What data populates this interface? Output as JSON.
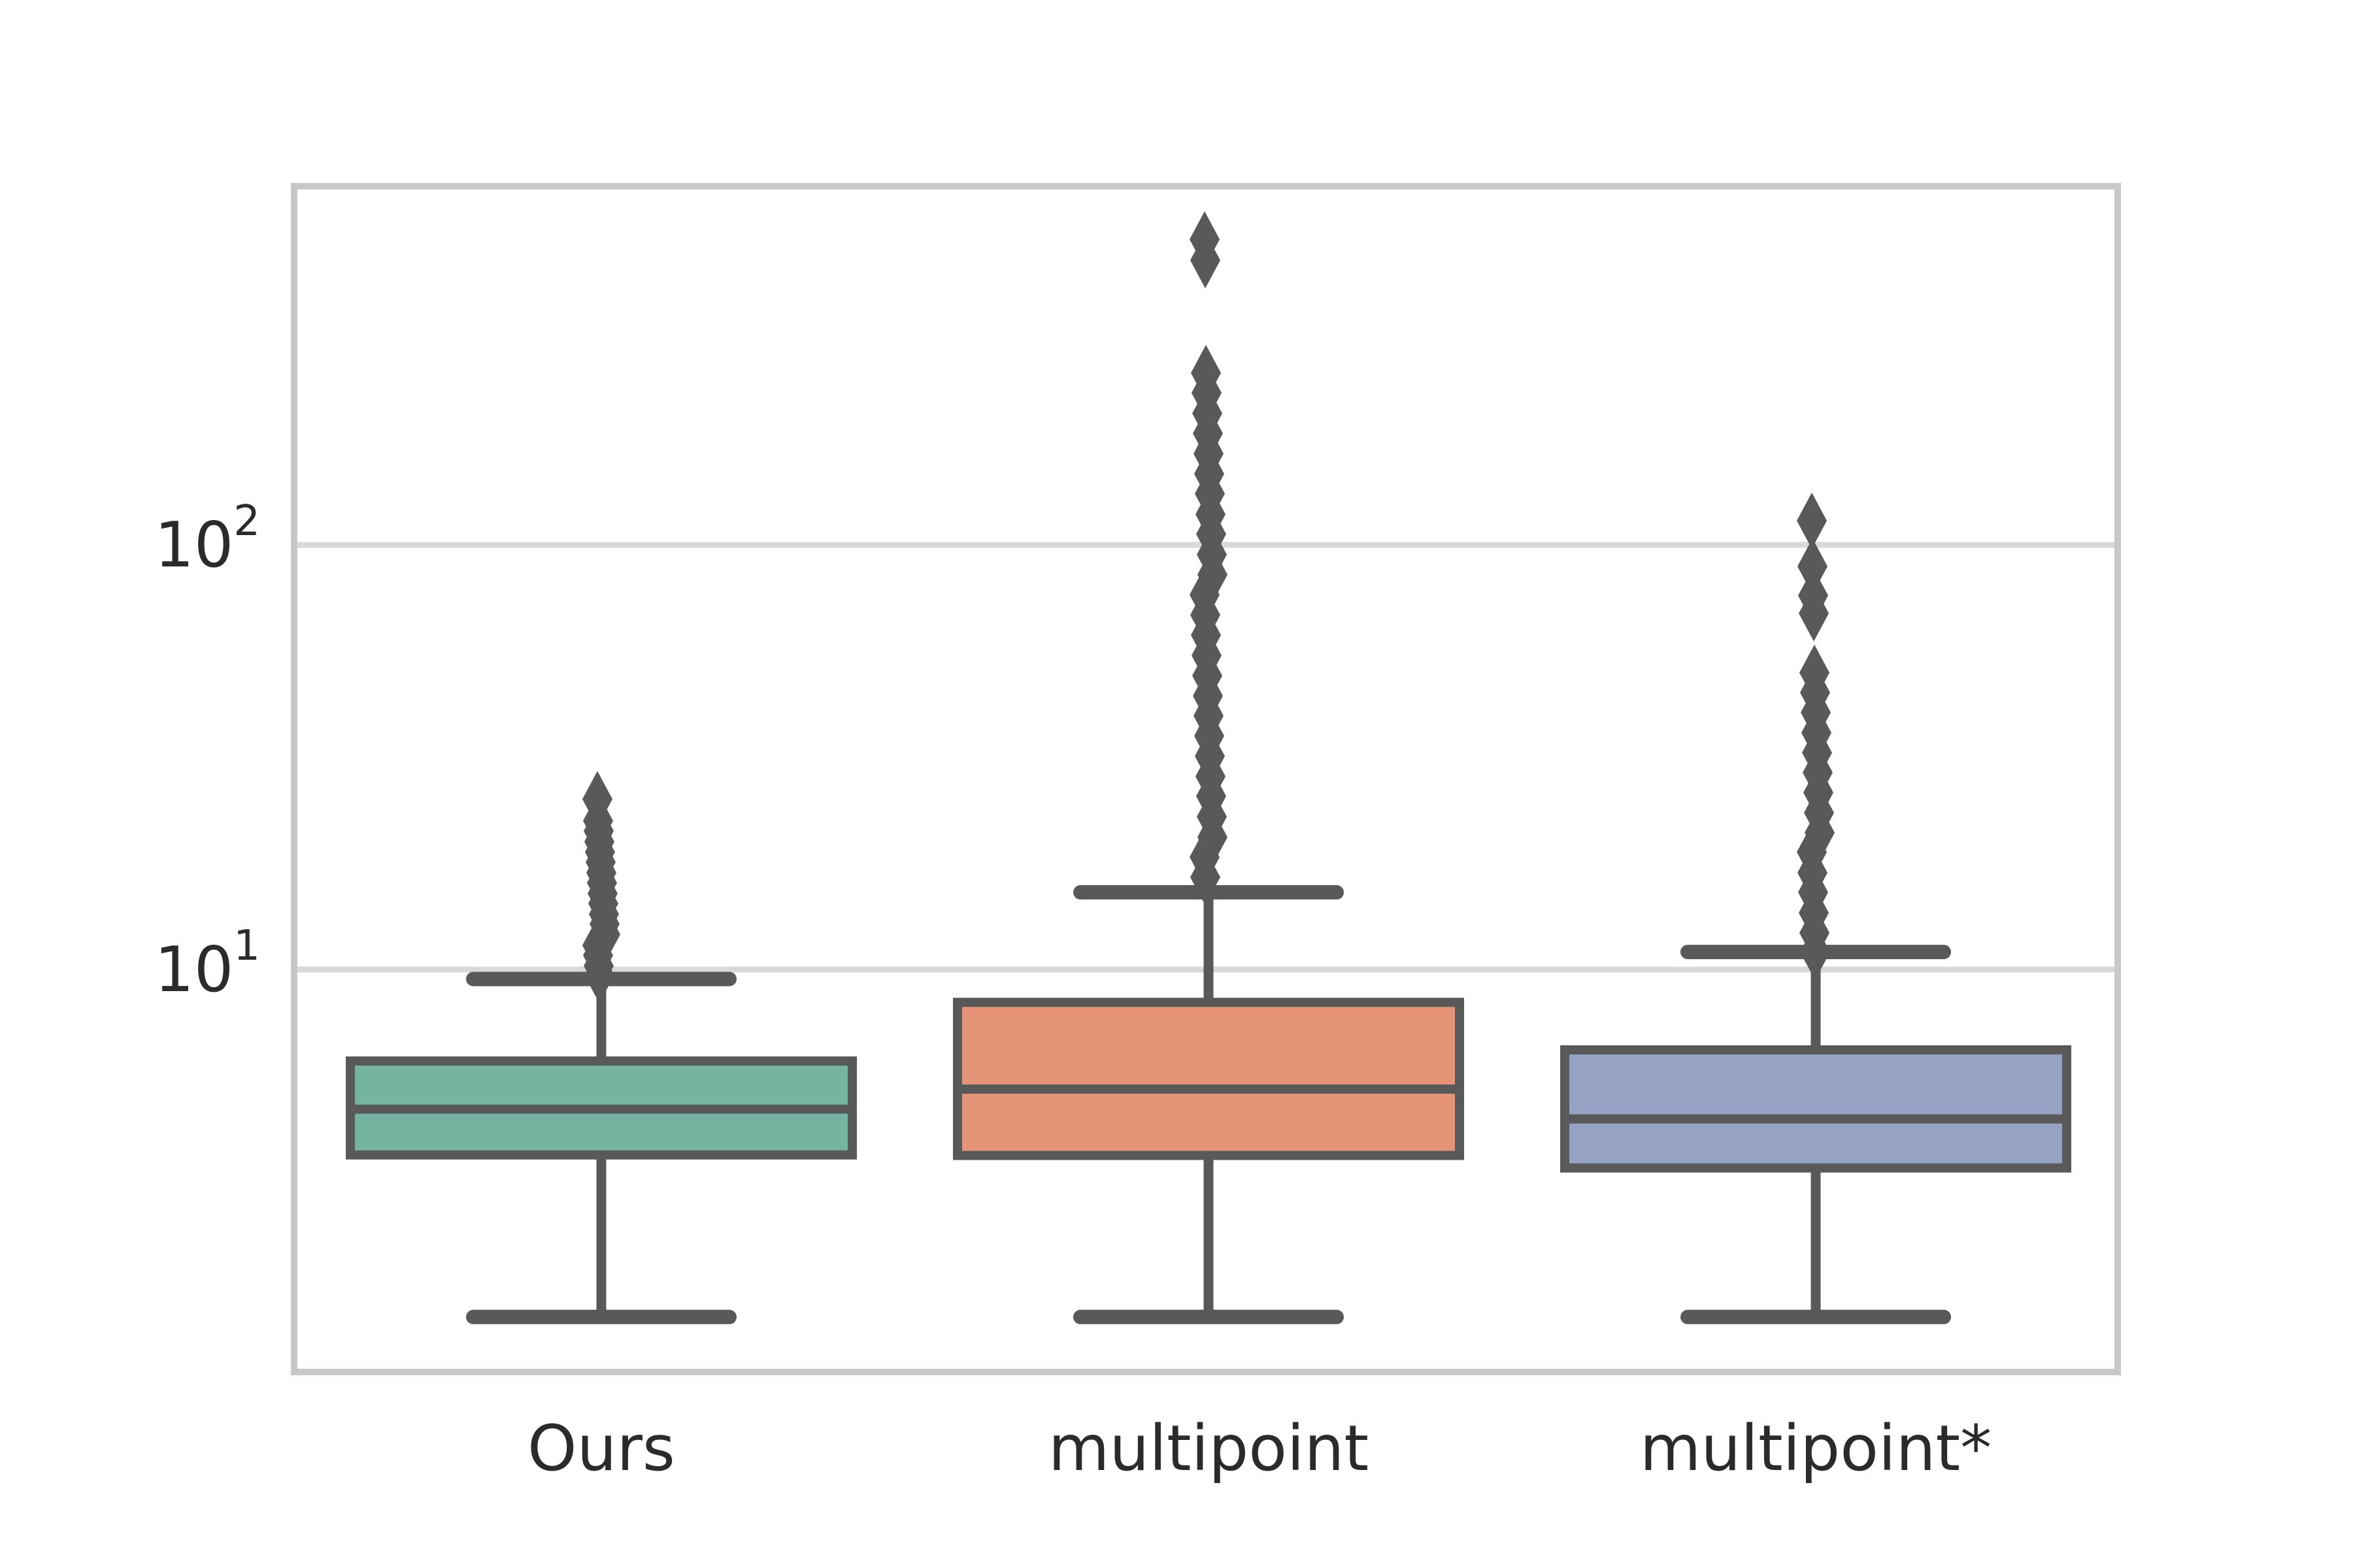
{
  "chart_data": {
    "type": "box",
    "title": "",
    "xlabel": "",
    "ylabel": "",
    "yscale": "log",
    "ylim": [
      1.13,
      700
    ],
    "grid": "horizontal",
    "categories": [
      "Ours",
      "multipoint",
      "multipoint*"
    ],
    "y_ticks": [
      {
        "base": "10",
        "exponent": "2",
        "value": 100
      },
      {
        "base": "10",
        "exponent": "1",
        "value": 10
      }
    ],
    "series": [
      {
        "name": "Ours",
        "box_color": "#75b4a0",
        "whisker_low": 1.52,
        "q1": 3.66,
        "median": 4.69,
        "q3": 6.09,
        "whisker_high": 9.5,
        "outliers": [
          25.2,
          22.4,
          21.2,
          20.0,
          18.9,
          17.9,
          16.9,
          16.0,
          15.1,
          14.3,
          13.5,
          12.8,
          12.1,
          11.4,
          10.8,
          10.2,
          9.7
        ]
      },
      {
        "name": "multipoint",
        "box_color": "#e69478",
        "whisker_low": 1.52,
        "q1": 3.65,
        "median": 5.23,
        "q3": 8.37,
        "whisker_high": 15.2,
        "outliers": [
          524,
          468,
          254,
          228,
          204,
          183,
          164,
          147,
          132,
          118,
          106,
          94.9,
          85.1,
          76.3,
          68.4,
          61.3,
          54.9,
          49.2,
          44.1,
          39.6,
          35.5,
          31.8,
          28.5,
          25.6,
          22.9,
          20.5,
          18.4,
          16.5
        ]
      },
      {
        "name": "multipoint*",
        "box_color": "#95a2c3",
        "whisker_low": 1.52,
        "q1": 3.41,
        "median": 4.45,
        "q3": 6.47,
        "whisker_high": 11.0,
        "outliers": [
          114,
          89,
          76,
          69,
          50,
          44.9,
          40.3,
          36.1,
          32.4,
          29.1,
          26.1,
          23.4,
          21.0,
          18.9,
          16.9,
          15.2,
          13.6,
          12.2,
          11.0
        ]
      }
    ],
    "colors": {
      "line_and_marker": "#595959",
      "grid_line": "#d9d9d9",
      "spine": "#c8c8c8",
      "tick_text": "#2b2b2b",
      "plot_background": "#ffffff"
    }
  }
}
